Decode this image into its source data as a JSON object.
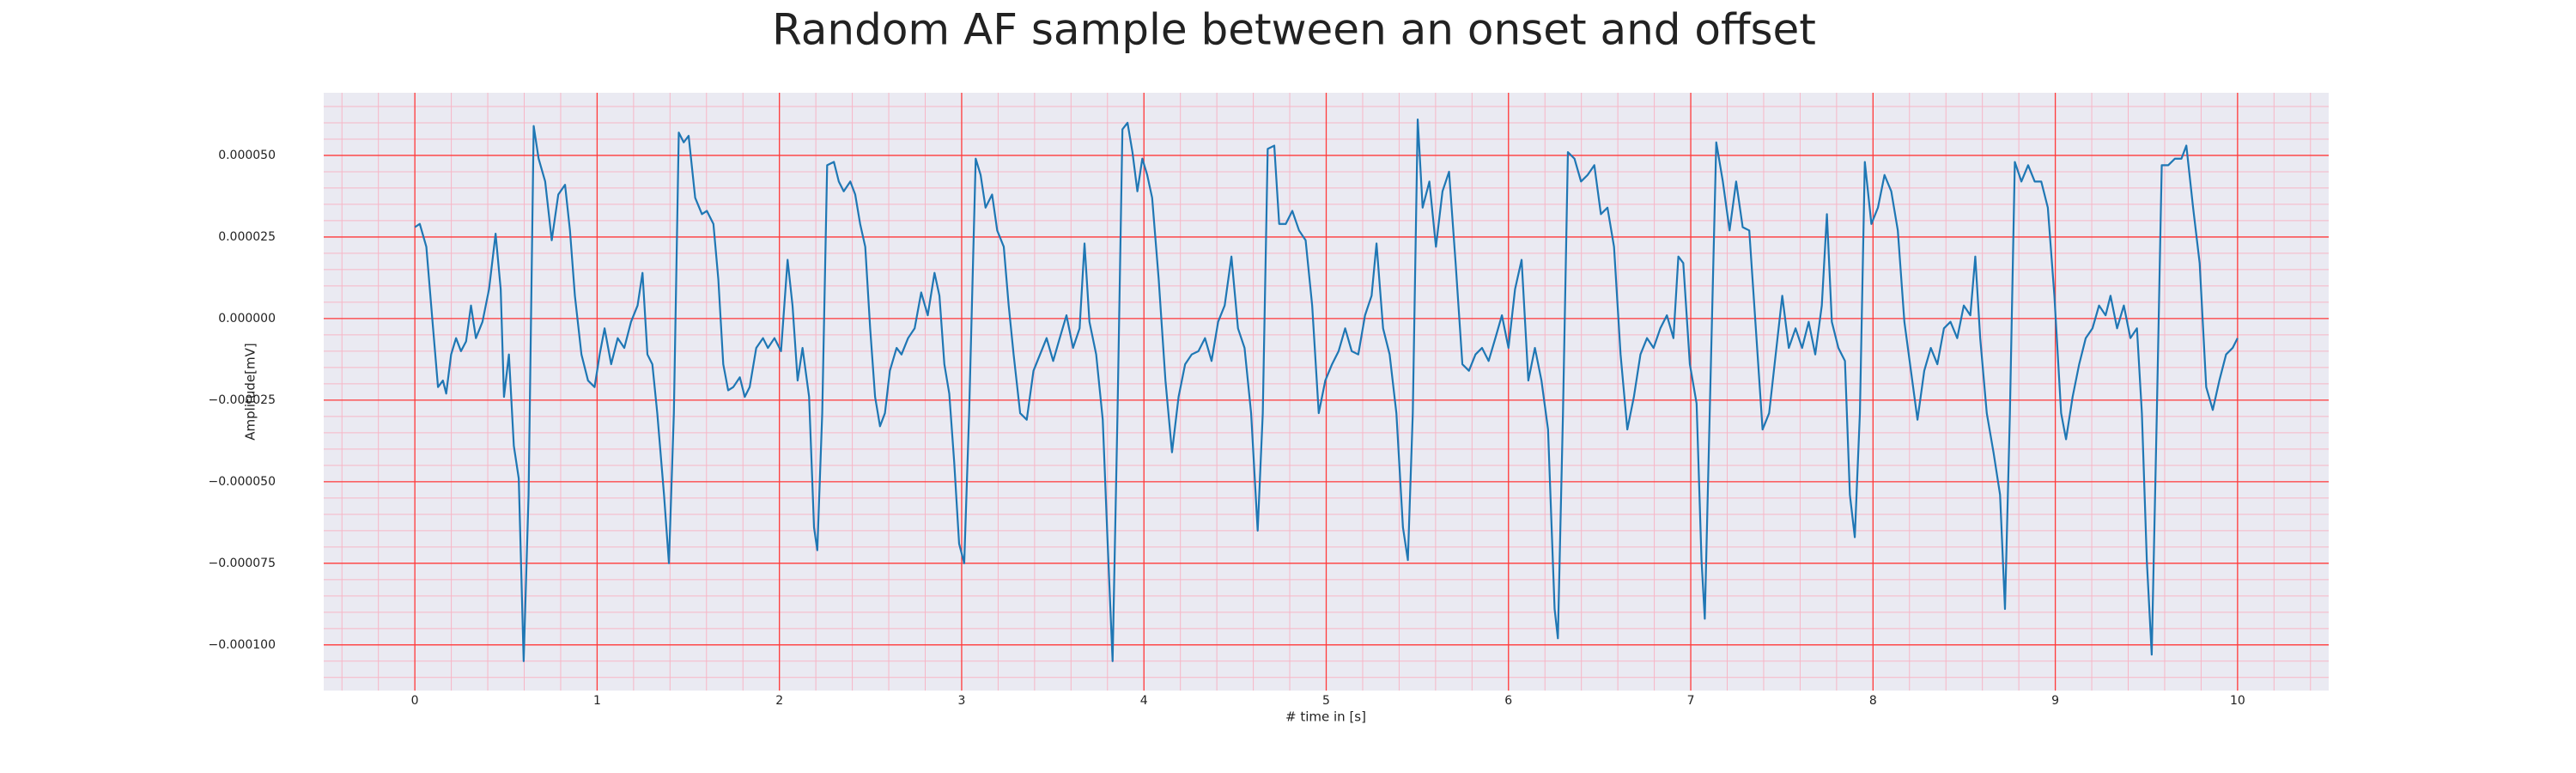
{
  "chart_data": {
    "type": "line",
    "title": "Random AF sample between an onset and offset",
    "x_label": "# time in [s]",
    "y_label": "Amplitude[mV]",
    "color": "#1f77b4",
    "background": "#eaeaf2",
    "grid": true,
    "grid_color": "#ff3b3b",
    "minor_grid": true,
    "minor_grid_color": "#f7b6c6",
    "xlim": [
      -0.5,
      10.5
    ],
    "xticks": [
      0,
      1,
      2,
      3,
      4,
      5,
      6,
      7,
      8,
      9,
      10
    ],
    "ylim": [
      -0.000114,
      6.92e-05
    ],
    "yticks": [
      {
        "value": 5e-05,
        "label": "0.000050"
      },
      {
        "value": 2.5e-05,
        "label": "0.000025"
      },
      {
        "value": 0,
        "label": "0.000000"
      },
      {
        "value": -2.5e-05,
        "label": "−0.000025"
      },
      {
        "value": -5e-05,
        "label": "−0.000050"
      },
      {
        "value": -7.5e-05,
        "label": "−0.000075"
      },
      {
        "value": -0.0001,
        "label": "−0.000100"
      }
    ],
    "x": [
      0,
      0.027,
      0.063,
      0.1,
      0.127,
      0.154,
      0.172,
      0.199,
      0.226,
      0.253,
      0.281,
      0.308,
      0.335,
      0.371,
      0.407,
      0.443,
      0.471,
      0.489,
      0.516,
      0.543,
      0.57,
      0.597,
      0.624,
      0.652,
      0.679,
      0.715,
      0.751,
      0.787,
      0.824,
      0.851,
      0.878,
      0.914,
      0.95,
      0.986,
      1.014,
      1.041,
      1.077,
      1.113,
      1.149,
      1.186,
      1.222,
      1.249,
      1.276,
      1.303,
      1.33,
      1.367,
      1.394,
      1.421,
      1.448,
      1.475,
      1.502,
      1.538,
      1.575,
      1.602,
      1.638,
      1.665,
      1.692,
      1.719,
      1.747,
      1.783,
      1.81,
      1.837,
      1.873,
      1.91,
      1.937,
      1.973,
      2.009,
      2.045,
      2.072,
      2.1,
      2.127,
      2.163,
      2.19,
      2.208,
      2.235,
      2.262,
      2.299,
      2.326,
      2.353,
      2.389,
      2.416,
      2.443,
      2.471,
      2.498,
      2.525,
      2.552,
      2.579,
      2.606,
      2.643,
      2.67,
      2.706,
      2.742,
      2.778,
      2.814,
      2.851,
      2.878,
      2.905,
      2.932,
      2.959,
      2.986,
      3.014,
      3.041,
      3.077,
      3.104,
      3.131,
      3.167,
      3.195,
      3.231,
      3.258,
      3.285,
      3.321,
      3.357,
      3.394,
      3.43,
      3.466,
      3.502,
      3.538,
      3.575,
      3.611,
      3.647,
      3.674,
      3.701,
      3.738,
      3.774,
      3.801,
      3.828,
      3.855,
      3.882,
      3.91,
      3.937,
      3.964,
      3.991,
      4.018,
      4.045,
      4.081,
      4.118,
      4.154,
      4.19,
      4.226,
      4.262,
      4.299,
      4.335,
      4.371,
      4.407,
      4.443,
      4.48,
      4.516,
      4.552,
      4.588,
      4.624,
      4.652,
      4.679,
      4.715,
      4.742,
      4.778,
      4.814,
      4.851,
      4.887,
      4.923,
      4.959,
      4.995,
      5.032,
      5.068,
      5.104,
      5.14,
      5.176,
      5.213,
      5.249,
      5.276,
      5.312,
      5.348,
      5.385,
      5.421,
      5.448,
      5.475,
      5.502,
      5.529,
      5.566,
      5.602,
      5.638,
      5.674,
      5.71,
      5.747,
      5.783,
      5.819,
      5.855,
      5.891,
      5.928,
      5.964,
      6.0,
      6.036,
      6.072,
      6.109,
      6.145,
      6.181,
      6.217,
      6.253,
      6.271,
      6.299,
      6.326,
      6.362,
      6.398,
      6.434,
      6.471,
      6.507,
      6.543,
      6.579,
      6.615,
      6.652,
      6.688,
      6.724,
      6.76,
      6.796,
      6.833,
      6.869,
      6.905,
      6.932,
      6.959,
      6.995,
      7.032,
      7.059,
      7.077,
      7.104,
      7.14,
      7.176,
      7.213,
      7.249,
      7.285,
      7.321,
      7.357,
      7.394,
      7.43,
      7.466,
      7.502,
      7.538,
      7.575,
      7.611,
      7.647,
      7.683,
      7.719,
      7.747,
      7.774,
      7.81,
      7.846,
      7.873,
      7.9,
      7.928,
      7.955,
      7.991,
      8.027,
      8.063,
      8.1,
      8.136,
      8.172,
      8.208,
      8.244,
      8.281,
      8.317,
      8.353,
      8.389,
      8.425,
      8.462,
      8.498,
      8.534,
      8.561,
      8.588,
      8.624,
      8.661,
      8.697,
      8.724,
      8.751,
      8.778,
      8.814,
      8.851,
      8.887,
      8.923,
      8.959,
      8.995,
      9.032,
      9.059,
      9.095,
      9.131,
      9.167,
      9.204,
      9.24,
      9.276,
      9.303,
      9.339,
      9.376,
      9.412,
      9.448,
      9.475,
      9.502,
      9.529,
      9.557,
      9.584,
      9.62,
      9.656,
      9.692,
      9.719,
      9.756,
      9.792,
      9.828,
      9.864,
      9.9,
      9.937,
      9.973,
      10.0
    ],
    "values": [
      2.8e-05,
      2.9e-05,
      2.2e-05,
      -3e-06,
      -2.1e-05,
      -1.9e-05,
      -2.3e-05,
      -1.1e-05,
      -6e-06,
      -1e-05,
      -7e-06,
      4e-06,
      -6e-06,
      -1e-06,
      9e-06,
      2.6e-05,
      9e-06,
      -2.4e-05,
      -1.1e-05,
      -3.9e-05,
      -4.9e-05,
      -0.000105,
      -5.4e-05,
      5.9e-05,
      4.9e-05,
      4.2e-05,
      2.4e-05,
      3.8e-05,
      4.1e-05,
      2.7e-05,
      7e-06,
      -1.1e-05,
      -1.9e-05,
      -2.1e-05,
      -1.1e-05,
      -3e-06,
      -1.4e-05,
      -6e-06,
      -9e-06,
      -1e-06,
      4e-06,
      1.4e-05,
      -1.1e-05,
      -1.4e-05,
      -2.9e-05,
      -5.4e-05,
      -7.5e-05,
      -2.9e-05,
      5.7e-05,
      5.4e-05,
      5.6e-05,
      3.7e-05,
      3.2e-05,
      3.3e-05,
      2.9e-05,
      1.2e-05,
      -1.4e-05,
      -2.2e-05,
      -2.1e-05,
      -1.8e-05,
      -2.4e-05,
      -2.1e-05,
      -9e-06,
      -6e-06,
      -9e-06,
      -6e-06,
      -1e-05,
      1.8e-05,
      4e-06,
      -1.9e-05,
      -9e-06,
      -2.4e-05,
      -6.4e-05,
      -7.1e-05,
      -2.9e-05,
      4.7e-05,
      4.8e-05,
      4.2e-05,
      3.9e-05,
      4.2e-05,
      3.8e-05,
      2.9e-05,
      2.2e-05,
      -3e-06,
      -2.4e-05,
      -3.3e-05,
      -2.9e-05,
      -1.6e-05,
      -9e-06,
      -1.1e-05,
      -6e-06,
      -3e-06,
      8e-06,
      1e-06,
      1.4e-05,
      7e-06,
      -1.4e-05,
      -2.3e-05,
      -4.4e-05,
      -6.9e-05,
      -7.5e-05,
      -2.9e-05,
      4.9e-05,
      4.4e-05,
      3.4e-05,
      3.8e-05,
      2.7e-05,
      2.2e-05,
      4e-06,
      -1.1e-05,
      -2.9e-05,
      -3.1e-05,
      -1.6e-05,
      -1.1e-05,
      -6e-06,
      -1.3e-05,
      -6e-06,
      1e-06,
      -9e-06,
      -3e-06,
      2.3e-05,
      -1e-06,
      -1.1e-05,
      -3.1e-05,
      -6.9e-05,
      -0.000105,
      -2.9e-05,
      5.8e-05,
      6e-05,
      5.1e-05,
      3.9e-05,
      4.9e-05,
      4.4e-05,
      3.7e-05,
      1.2e-05,
      -1.9e-05,
      -4.1e-05,
      -2.4e-05,
      -1.4e-05,
      -1.1e-05,
      -1e-05,
      -6e-06,
      -1.3e-05,
      -1e-06,
      4e-06,
      1.9e-05,
      -3e-06,
      -9e-06,
      -2.9e-05,
      -6.5e-05,
      -2.9e-05,
      5.2e-05,
      5.3e-05,
      2.9e-05,
      2.9e-05,
      3.3e-05,
      2.7e-05,
      2.4e-05,
      4e-06,
      -2.9e-05,
      -1.9e-05,
      -1.4e-05,
      -1e-05,
      -3e-06,
      -1e-05,
      -1.1e-05,
      1e-06,
      7e-06,
      2.3e-05,
      -3e-06,
      -1.1e-05,
      -2.9e-05,
      -6.4e-05,
      -7.4e-05,
      -2.9e-05,
      6.1e-05,
      3.4e-05,
      4.2e-05,
      2.2e-05,
      3.9e-05,
      4.5e-05,
      1.7e-05,
      -1.4e-05,
      -1.6e-05,
      -1.1e-05,
      -9e-06,
      -1.3e-05,
      -6e-06,
      1e-06,
      -9e-06,
      9e-06,
      1.8e-05,
      -1.9e-05,
      -9e-06,
      -1.9e-05,
      -3.4e-05,
      -8.9e-05,
      -9.8e-05,
      -2.9e-05,
      5.1e-05,
      4.9e-05,
      4.2e-05,
      4.4e-05,
      4.7e-05,
      3.2e-05,
      3.4e-05,
      2.2e-05,
      -1.1e-05,
      -3.4e-05,
      -2.4e-05,
      -1.1e-05,
      -6e-06,
      -9e-06,
      -3e-06,
      1e-06,
      -6e-06,
      1.9e-05,
      1.7e-05,
      -1.4e-05,
      -2.6e-05,
      -7.4e-05,
      -9.2e-05,
      -2.9e-05,
      5.4e-05,
      4.2e-05,
      2.7e-05,
      4.2e-05,
      2.8e-05,
      2.7e-05,
      -3e-06,
      -3.4e-05,
      -2.9e-05,
      -1.1e-05,
      7e-06,
      -9e-06,
      -3e-06,
      -9e-06,
      -1e-06,
      -1.1e-05,
      4e-06,
      3.2e-05,
      -1e-06,
      -9e-06,
      -1.3e-05,
      -5.4e-05,
      -6.7e-05,
      -2.9e-05,
      4.8e-05,
      2.9e-05,
      3.4e-05,
      4.4e-05,
      3.9e-05,
      2.7e-05,
      -1e-06,
      -1.6e-05,
      -3.1e-05,
      -1.6e-05,
      -9e-06,
      -1.4e-05,
      -3e-06,
      -1e-06,
      -6e-06,
      4e-06,
      1e-06,
      1.9e-05,
      -6e-06,
      -2.9e-05,
      -4.1e-05,
      -5.4e-05,
      -8.9e-05,
      -2.9e-05,
      4.8e-05,
      4.2e-05,
      4.7e-05,
      4.2e-05,
      4.2e-05,
      3.4e-05,
      7e-06,
      -2.9e-05,
      -3.7e-05,
      -2.4e-05,
      -1.4e-05,
      -6e-06,
      -3e-06,
      4e-06,
      1e-06,
      7e-06,
      -3e-06,
      4e-06,
      -6e-06,
      -3e-06,
      -2.9e-05,
      -7.4e-05,
      -0.000103,
      -2.9e-05,
      4.7e-05,
      4.7e-05,
      4.9e-05,
      4.9e-05,
      5.3e-05,
      3.4e-05,
      1.7e-05,
      -2.1e-05,
      -2.8e-05,
      -1.9e-05,
      -1.1e-05,
      -9e-06,
      -6e-06
    ]
  }
}
